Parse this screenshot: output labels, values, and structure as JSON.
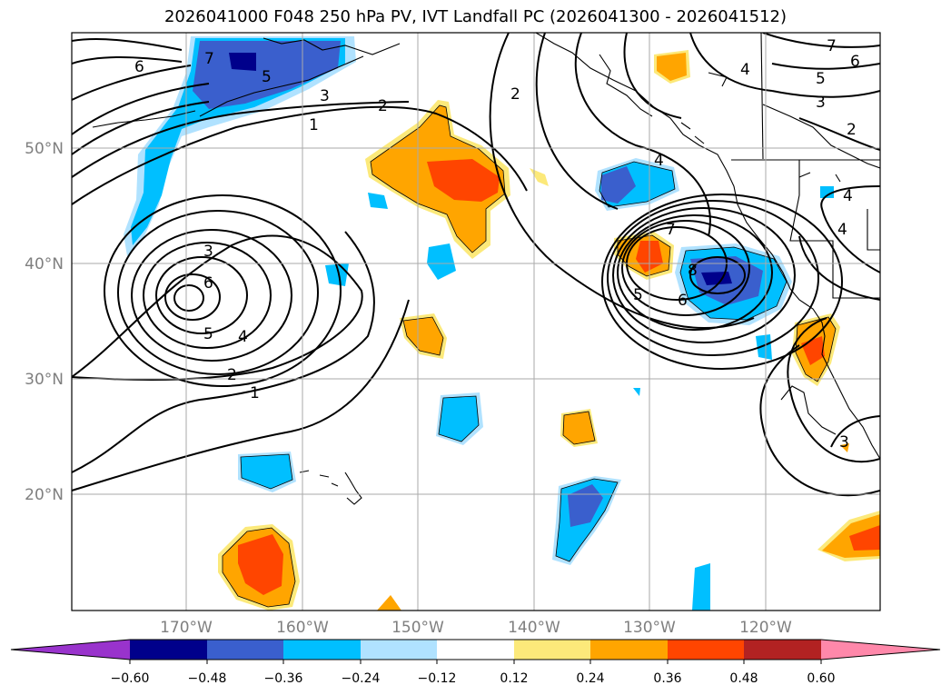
{
  "title": "2026041000 F048 250 hPa PV, IVT Landfall PC (2026041300 - 2026041512)",
  "map": {
    "lon_labels": [
      "170°W",
      "160°W",
      "150°W",
      "140°W",
      "130°W",
      "120°W"
    ],
    "lat_labels": [
      "50°N",
      "40°N",
      "30°N",
      "20°N"
    ],
    "contour_labels": [
      "6",
      "7",
      "5",
      "3",
      "1",
      "2",
      "3",
      "6",
      "5",
      "4",
      "2",
      "1",
      "2",
      "4",
      "7",
      "5",
      "6",
      "8",
      "4",
      "7",
      "6",
      "5",
      "3",
      "2",
      "4",
      "4",
      "3"
    ]
  },
  "colorbar": {
    "colors": [
      "#9933cc",
      "#00008b",
      "#3a5fcd",
      "#00bfff",
      "#b0e2ff",
      "#ffffff",
      "#fce97a",
      "#ffa500",
      "#ff4500",
      "#b22222",
      "#ff88aa"
    ],
    "tick_labels": [
      "−0.60",
      "−0.48",
      "−0.36",
      "−0.24",
      "−0.12",
      "0.12",
      "0.24",
      "0.36",
      "0.48",
      "0.60"
    ]
  }
}
